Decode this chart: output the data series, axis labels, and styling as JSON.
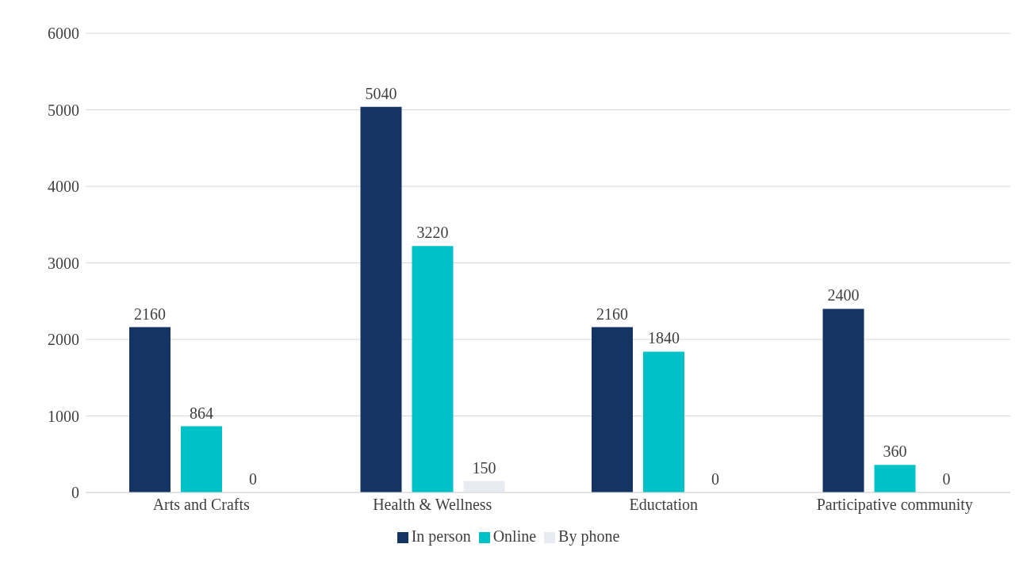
{
  "chart_data": {
    "type": "bar",
    "categories": [
      "Arts and Crafts",
      "Health & Wellness",
      "Eductation",
      "Participative community"
    ],
    "series": [
      {
        "name": "In person",
        "color": "#143564",
        "values": [
          2160,
          5040,
          2160,
          2400
        ]
      },
      {
        "name": "Online",
        "color": "#00c1c8",
        "values": [
          864,
          3220,
          1840,
          360
        ]
      },
      {
        "name": "By phone",
        "color": "#e8ecf2",
        "values": [
          0,
          150,
          0,
          0
        ]
      }
    ],
    "ylim": [
      0,
      6000
    ],
    "yticks": [
      0,
      1000,
      2000,
      3000,
      4000,
      5000,
      6000
    ],
    "grid": "y",
    "legend": "bottom",
    "data_labels": true
  }
}
